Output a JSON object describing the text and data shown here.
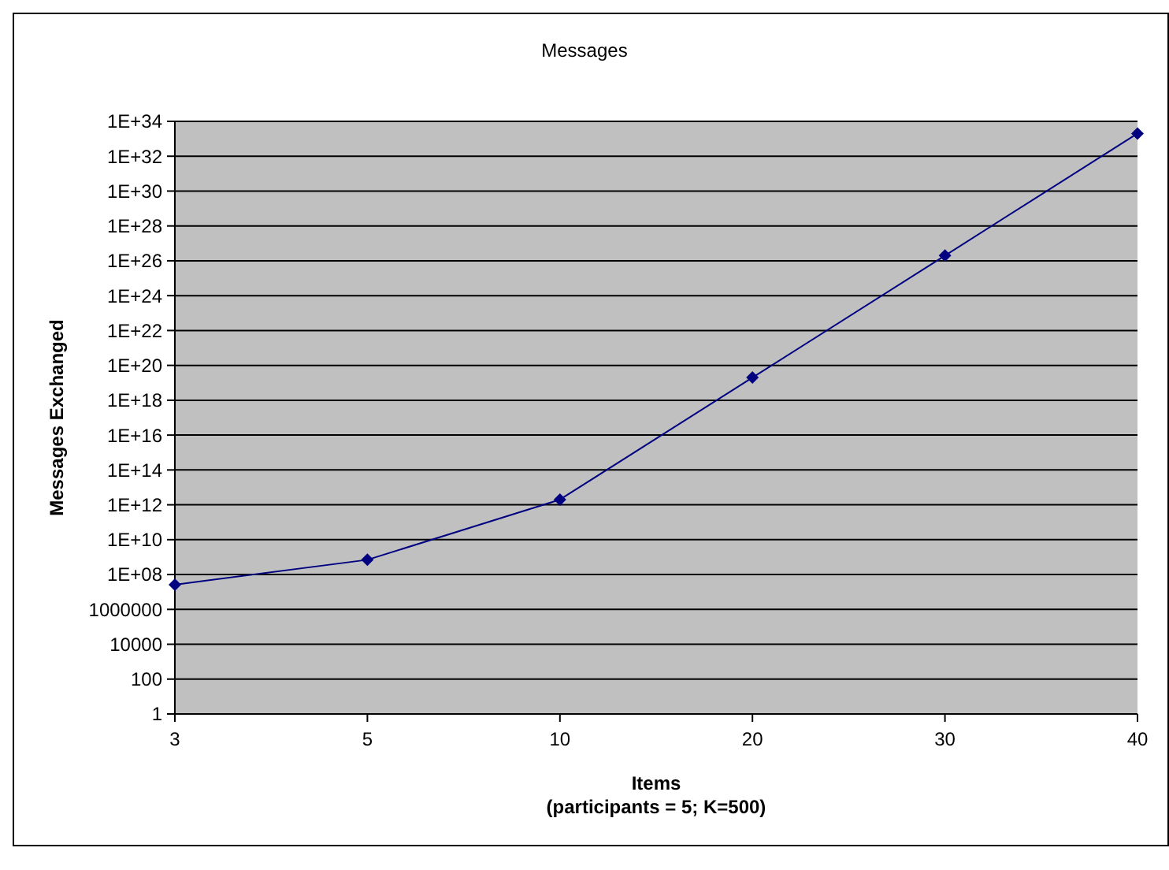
{
  "chart_data": {
    "type": "line",
    "title": "Messages",
    "xlabel": "Items\n(participants = 5; K=500)",
    "ylabel": "Messages Exchanged",
    "categories": [
      "3",
      "5",
      "10",
      "20",
      "30",
      "40"
    ],
    "series": [
      {
        "color": "#000080",
        "values": [
          26000000.0,
          700000000.0,
          2000000000000.0,
          2e+19,
          2e+26,
          2e+33
        ]
      }
    ],
    "log": "y",
    "ylim": [
      1,
      1e+34
    ],
    "yticks": [
      1,
      100,
      10000,
      1000000,
      {
        "value": 100000000.0,
        "label": "1E+08"
      },
      {
        "value": 10000000000.0,
        "label": "1E+10"
      },
      {
        "value": 1000000000000.0,
        "label": "1E+12"
      },
      {
        "value": 100000000000000.0,
        "label": "1E+14"
      },
      {
        "value": 1e+16,
        "label": "1E+16"
      },
      {
        "value": 1e+18,
        "label": "1E+18"
      },
      {
        "value": 1e+20,
        "label": "1E+20"
      },
      {
        "value": 1e+22,
        "label": "1E+22"
      },
      {
        "value": 1e+24,
        "label": "1E+24"
      },
      {
        "value": 1e+26,
        "label": "1E+26"
      },
      {
        "value": 1e+28,
        "label": "1E+28"
      },
      {
        "value": 1e+30,
        "label": "1E+30"
      },
      {
        "value": 1e+32,
        "label": "1E+32"
      },
      {
        "value": 1e+34,
        "label": "1E+34"
      }
    ],
    "grid": "y",
    "marker": "diamond",
    "line_style": "solid"
  }
}
